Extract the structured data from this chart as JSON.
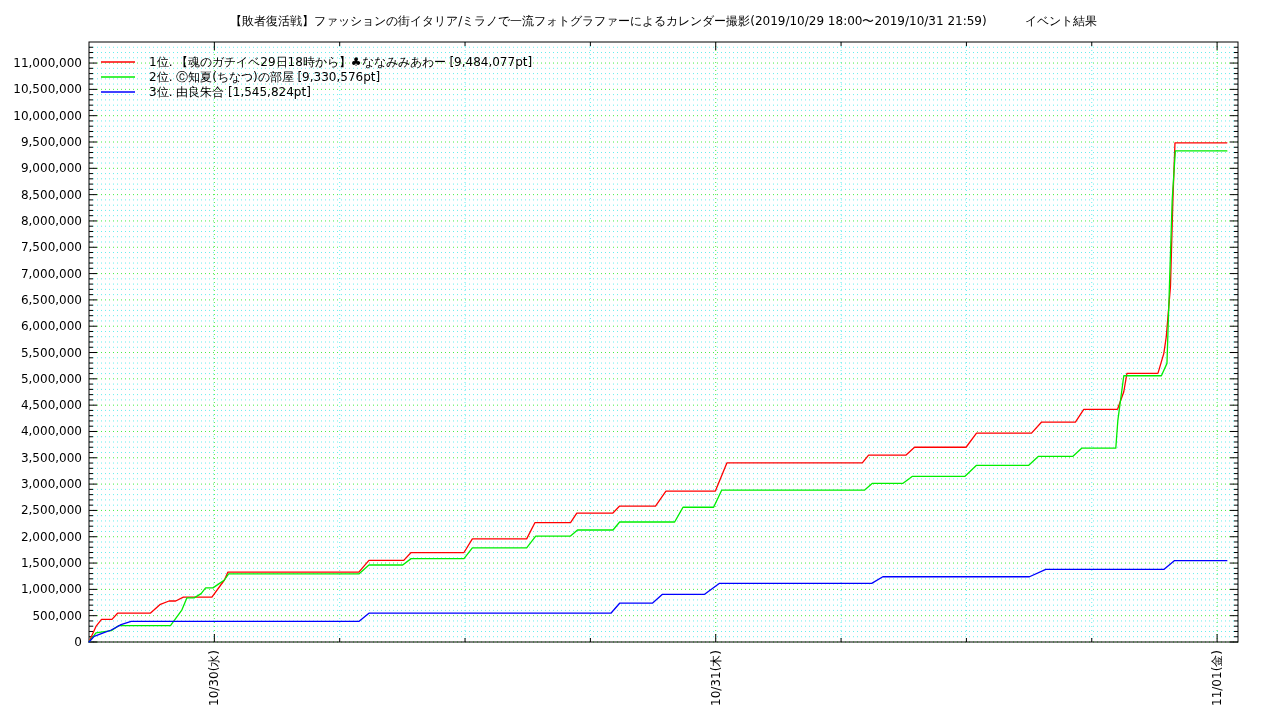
{
  "chart_data": {
    "type": "line",
    "title": "【敗者復活戦】ファッションの街イタリア/ミラノで一流フォトグラファーによるカレンダー撮影(2019/10/29 18:00〜2019/10/31 21:59)          イベント結果",
    "legend": "top left",
    "grid": true,
    "xlim": [
      "2019-10-29T18:00",
      "2019-11-01T01:00"
    ],
    "xticks": [
      {
        "value": "2019-10-30T00:00",
        "label": "10/30(水)"
      },
      {
        "value": "2019-10-30T06:00",
        "label": null
      },
      {
        "value": "2019-10-30T12:00",
        "label": null
      },
      {
        "value": "2019-10-30T18:00",
        "label": null
      },
      {
        "value": "2019-10-31T00:00",
        "label": "10/31(木)"
      },
      {
        "value": "2019-10-31T06:00",
        "label": null
      },
      {
        "value": "2019-10-31T12:00",
        "label": null
      },
      {
        "value": "2019-10-31T18:00",
        "label": null
      },
      {
        "value": "2019-11-01T00:00",
        "label": "11/01(金)"
      }
    ],
    "ylim": [
      0,
      11400000
    ],
    "yticks": [
      0,
      {
        "value": 100000,
        "label": null
      },
      {
        "value": 200000,
        "label": null
      },
      {
        "value": 300000,
        "label": null
      },
      {
        "value": 400000,
        "label": null
      },
      {
        "value": 500000,
        "label": "500,000"
      },
      {
        "value": 600000,
        "label": null
      },
      {
        "value": 700000,
        "label": null
      },
      {
        "value": 800000,
        "label": null
      },
      {
        "value": 900000,
        "label": null
      },
      {
        "value": 1000000,
        "label": "1,000,000"
      },
      {
        "value": 1100000,
        "label": null
      },
      {
        "value": 1200000,
        "label": null
      },
      {
        "value": 1300000,
        "label": null
      },
      {
        "value": 1400000,
        "label": null
      },
      {
        "value": 1500000,
        "label": "1,500,000"
      },
      {
        "value": 1600000,
        "label": null
      },
      {
        "value": 1700000,
        "label": null
      },
      {
        "value": 1800000,
        "label": null
      },
      {
        "value": 1900000,
        "label": null
      },
      {
        "value": 2000000,
        "label": "2,000,000"
      },
      {
        "value": 2100000,
        "label": null
      },
      {
        "value": 2200000,
        "label": null
      },
      {
        "value": 2300000,
        "label": null
      },
      {
        "value": 2400000,
        "label": null
      },
      {
        "value": 2500000,
        "label": "2,500,000"
      },
      {
        "value": 2600000,
        "label": null
      },
      {
        "value": 2700000,
        "label": null
      },
      {
        "value": 2800000,
        "label": null
      },
      {
        "value": 2900000,
        "label": null
      },
      {
        "value": 3000000,
        "label": "3,000,000"
      },
      {
        "value": 3100000,
        "label": null
      },
      {
        "value": 3200000,
        "label": null
      },
      {
        "value": 3300000,
        "label": null
      },
      {
        "value": 3400000,
        "label": null
      },
      {
        "value": 3500000,
        "label": "3,500,000"
      },
      {
        "value": 3600000,
        "label": null
      },
      {
        "value": 3700000,
        "label": null
      },
      {
        "value": 3800000,
        "label": null
      },
      {
        "value": 3900000,
        "label": null
      },
      {
        "value": 4000000,
        "label": "4,000,000"
      },
      {
        "value": 4100000,
        "label": null
      },
      {
        "value": 4200000,
        "label": null
      },
      {
        "value": 4300000,
        "label": null
      },
      {
        "value": 4400000,
        "label": null
      },
      {
        "value": 4500000,
        "label": "4,500,000"
      },
      {
        "value": 4600000,
        "label": null
      },
      {
        "value": 4700000,
        "label": null
      },
      {
        "value": 4800000,
        "label": null
      },
      {
        "value": 4900000,
        "label": null
      },
      {
        "value": 5000000,
        "label": "5,000,000"
      },
      {
        "value": 5100000,
        "label": null
      },
      {
        "value": 5200000,
        "label": null
      },
      {
        "value": 5300000,
        "label": null
      },
      {
        "value": 5400000,
        "label": null
      },
      {
        "value": 5500000,
        "label": "5,500,000"
      },
      {
        "value": 5600000,
        "label": null
      },
      {
        "value": 5700000,
        "label": null
      },
      {
        "value": 5800000,
        "label": null
      },
      {
        "value": 5900000,
        "label": null
      },
      {
        "value": 6000000,
        "label": "6,000,000"
      },
      {
        "value": 6100000,
        "label": null
      },
      {
        "value": 6200000,
        "label": null
      },
      {
        "value": 6300000,
        "label": null
      },
      {
        "value": 6400000,
        "label": null
      },
      {
        "value": 6500000,
        "label": "6,500,000"
      },
      {
        "value": 6600000,
        "label": null
      },
      {
        "value": 6700000,
        "label": null
      },
      {
        "value": 6800000,
        "label": null
      },
      {
        "value": 6900000,
        "label": null
      },
      {
        "value": 7000000,
        "label": "7,000,000"
      },
      {
        "value": 7100000,
        "label": null
      },
      {
        "value": 7200000,
        "label": null
      },
      {
        "value": 7300000,
        "label": null
      },
      {
        "value": 7400000,
        "label": null
      },
      {
        "value": 7500000,
        "label": "7,500,000"
      },
      {
        "value": 7600000,
        "label": null
      },
      {
        "value": 7700000,
        "label": null
      },
      {
        "value": 7800000,
        "label": null
      },
      {
        "value": 7900000,
        "label": null
      },
      {
        "value": 8000000,
        "label": "8,000,000"
      },
      {
        "value": 8100000,
        "label": null
      },
      {
        "value": 8200000,
        "label": null
      },
      {
        "value": 8300000,
        "label": null
      },
      {
        "value": 8400000,
        "label": null
      },
      {
        "value": 8500000,
        "label": "8,500,000"
      },
      {
        "value": 8600000,
        "label": null
      },
      {
        "value": 8700000,
        "label": null
      },
      {
        "value": 8800000,
        "label": null
      },
      {
        "value": 8900000,
        "label": null
      },
      {
        "value": 9000000,
        "label": "9,000,000"
      },
      {
        "value": 9100000,
        "label": null
      },
      {
        "value": 9200000,
        "label": null
      },
      {
        "value": 9300000,
        "label": null
      },
      {
        "value": 9400000,
        "label": null
      },
      {
        "value": 9500000,
        "label": "9,500,000"
      },
      {
        "value": 9600000,
        "label": null
      },
      {
        "value": 9700000,
        "label": null
      },
      {
        "value": 9800000,
        "label": null
      },
      {
        "value": 9900000,
        "label": null
      },
      {
        "value": 10000000,
        "label": "10,000,000"
      },
      {
        "value": 10100000,
        "label": null
      },
      {
        "value": 10200000,
        "label": null
      },
      {
        "value": 10300000,
        "label": null
      },
      {
        "value": 10400000,
        "label": null
      },
      {
        "value": 10500000,
        "label": "10,500,000"
      },
      {
        "value": 10600000,
        "label": null
      },
      {
        "value": 10700000,
        "label": null
      },
      {
        "value": 10800000,
        "label": null
      },
      {
        "value": 10900000,
        "label": null
      },
      {
        "value": 11000000,
        "label": "11,000,000"
      },
      {
        "value": 11100000,
        "label": null
      },
      {
        "value": 11200000,
        "label": null
      },
      {
        "value": 11300000,
        "label": null
      }
    ],
    "series": [
      {
        "name": "1位. 【魂のガチイベ29日18時から】♣ななみみあわー [9,484,077pt]",
        "color": "#ff0000",
        "x": [
          "2019-10-29T18:00",
          "2019-10-29T18:20",
          "2019-10-29T18:36",
          "2019-10-29T19:06",
          "2019-10-29T19:22",
          "2019-10-29T20:56",
          "2019-10-29T21:25",
          "2019-10-29T21:50",
          "2019-10-29T22:09",
          "2019-10-29T22:31",
          "2019-10-29T23:53",
          "2019-10-30T00:29",
          "2019-10-30T00:39",
          "2019-10-30T06:55",
          "2019-10-30T07:24",
          "2019-10-30T09:04",
          "2019-10-30T09:25",
          "2019-10-30T11:57",
          "2019-10-30T12:21",
          "2019-10-30T14:57",
          "2019-10-30T15:21",
          "2019-10-30T17:03",
          "2019-10-30T17:21",
          "2019-10-30T19:04",
          "2019-10-30T19:24",
          "2019-10-30T21:07",
          "2019-10-30T21:37",
          "2019-10-30T23:59",
          "2019-10-31T00:32",
          "2019-10-31T07:01",
          "2019-10-31T07:19",
          "2019-10-31T09:06",
          "2019-10-31T09:31",
          "2019-10-31T11:59",
          "2019-10-31T12:29",
          "2019-10-31T15:07",
          "2019-10-31T15:36",
          "2019-10-31T17:13",
          "2019-10-31T17:37",
          "2019-10-31T19:13",
          "2019-10-31T19:15",
          "2019-10-31T19:32",
          "2019-10-31T19:41",
          "2019-10-31T21:10",
          "2019-10-31T21:27",
          "2019-10-31T21:34",
          "2019-10-31T21:46",
          "2019-10-31T21:53",
          "2019-10-31T21:59",
          "2019-11-01T00:28"
        ],
        "values": [
          0,
          296000,
          431000,
          431000,
          547000,
          547000,
          716000,
          779000,
          779000,
          853000,
          853000,
          1178000,
          1328000,
          1328000,
          1550000,
          1550000,
          1700000,
          1700000,
          1959000,
          1959000,
          2270000,
          2270000,
          2447000,
          2447000,
          2583000,
          2583000,
          2868000,
          2868000,
          3402000,
          3402000,
          3550000,
          3550000,
          3700000,
          3700000,
          3969000,
          3969000,
          4179000,
          4179000,
          4419000,
          4419000,
          4440000,
          4755000,
          5104000,
          5104000,
          5484000,
          5800000,
          6750000,
          8397000,
          9484077,
          9484077
        ]
      },
      {
        "name": "2位. Ⓒ知夏(ちなつ)の部屋 [9,330,576pt]",
        "color": "#00ee00",
        "x": [
          "2019-10-29T18:00",
          "2019-10-29T18:20",
          "2019-10-29T19:04",
          "2019-10-29T19:25",
          "2019-10-29T21:54",
          "2019-10-29T22:26",
          "2019-10-29T22:41",
          "2019-10-29T23:02",
          "2019-10-29T23:22",
          "2019-10-29T23:35",
          "2019-10-29T23:56",
          "2019-10-30T00:14",
          "2019-10-30T00:29",
          "2019-10-30T00:41",
          "2019-10-30T06:55",
          "2019-10-30T07:24",
          "2019-10-30T09:01",
          "2019-10-30T09:25",
          "2019-10-30T11:57",
          "2019-10-30T12:21",
          "2019-10-30T14:57",
          "2019-10-30T15:23",
          "2019-10-30T17:03",
          "2019-10-30T17:23",
          "2019-10-30T19:05",
          "2019-10-30T19:24",
          "2019-10-30T22:02",
          "2019-10-30T22:26",
          "2019-10-30T23:54",
          "2019-10-31T00:17",
          "2019-10-31T07:07",
          "2019-10-31T07:30",
          "2019-10-31T08:58",
          "2019-10-31T09:25",
          "2019-10-31T11:56",
          "2019-10-31T12:29",
          "2019-10-31T14:59",
          "2019-10-31T15:27",
          "2019-10-31T17:06",
          "2019-10-31T17:31",
          "2019-10-31T19:09",
          "2019-10-31T19:15",
          "2019-10-31T19:32",
          "2019-10-31T21:20",
          "2019-10-31T21:36",
          "2019-10-31T21:43",
          "2019-10-31T21:51",
          "2019-10-31T22:00",
          "2019-11-01T00:28"
        ],
        "values": [
          0,
          173000,
          215000,
          310000,
          310000,
          600000,
          838000,
          838000,
          919000,
          1028000,
          1028000,
          1109000,
          1178000,
          1294000,
          1294000,
          1463000,
          1463000,
          1584000,
          1584000,
          1788000,
          1788000,
          2012000,
          2012000,
          2128000,
          2128000,
          2280000,
          2280000,
          2560000,
          2560000,
          2884000,
          2884000,
          3015000,
          3015000,
          3148000,
          3148000,
          3357000,
          3357000,
          3528000,
          3528000,
          3682000,
          3682000,
          4217000,
          5059000,
          5059000,
          5294000,
          6750000,
          8397000,
          9330576,
          9330576
        ]
      },
      {
        "name": "3位. 由良朱合 [1,545,824pt]",
        "color": "#0000ff",
        "x": [
          "2019-10-29T18:00",
          "2019-10-29T18:15",
          "2019-10-29T18:41",
          "2019-10-29T19:04",
          "2019-10-29T19:32",
          "2019-10-29T20:01",
          "2019-10-30T06:55",
          "2019-10-30T07:24",
          "2019-10-30T18:59",
          "2019-10-30T19:24",
          "2019-10-30T20:58",
          "2019-10-30T21:27",
          "2019-10-30T23:28",
          "2019-10-31T00:11",
          "2019-10-31T07:28",
          "2019-10-31T08:00",
          "2019-10-31T15:01",
          "2019-10-31T15:48",
          "2019-10-31T21:27",
          "2019-10-31T21:57",
          "2019-11-01T00:28"
        ],
        "values": [
          0,
          106000,
          173000,
          228000,
          331000,
          391000,
          391000,
          547000,
          547000,
          737000,
          737000,
          906000,
          906000,
          1115000,
          1115000,
          1240000,
          1240000,
          1379000,
          1379000,
          1545824,
          1545824
        ]
      }
    ]
  }
}
